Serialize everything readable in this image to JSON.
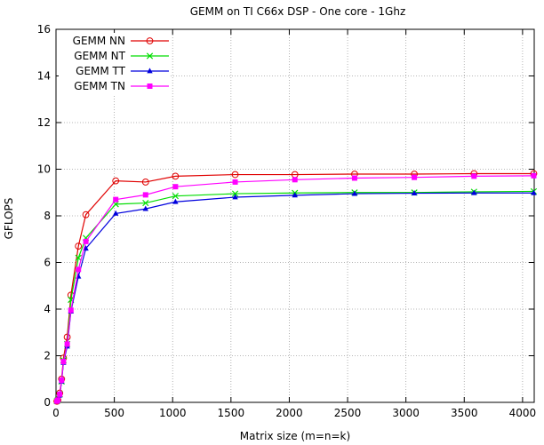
{
  "chart_data": {
    "type": "line",
    "title": "GEMM on TI C66x DSP - One core - 1Ghz",
    "xlabel": "Matrix size (m=n=k)",
    "ylabel": "GFLOPS",
    "xlim": [
      0,
      4100
    ],
    "ylim": [
      0,
      16
    ],
    "xticks": [
      0,
      500,
      1000,
      1500,
      2000,
      2500,
      3000,
      3500,
      4000
    ],
    "yticks": [
      0,
      2,
      4,
      6,
      8,
      10,
      12,
      14,
      16
    ],
    "grid": true,
    "legend_position": "top-left",
    "x": [
      8,
      16,
      32,
      48,
      64,
      96,
      128,
      192,
      256,
      512,
      768,
      1024,
      1536,
      2048,
      2560,
      3072,
      3584,
      4096
    ],
    "series": [
      {
        "name": "GEMM NN",
        "color": "#e00000",
        "marker": "circle",
        "values": [
          0.05,
          0.1,
          0.4,
          1.0,
          1.9,
          2.8,
          4.6,
          6.7,
          8.05,
          9.5,
          9.45,
          9.7,
          9.77,
          9.77,
          9.79,
          9.79,
          9.81,
          9.81
        ]
      },
      {
        "name": "GEMM NT",
        "color": "#00dd00",
        "marker": "x",
        "values": [
          0.05,
          0.1,
          0.35,
          0.9,
          1.8,
          2.5,
          4.4,
          6.2,
          7.05,
          8.5,
          8.55,
          8.85,
          8.95,
          8.98,
          9.0,
          9.0,
          9.03,
          9.05
        ]
      },
      {
        "name": "GEMM TT",
        "color": "#0000dd",
        "marker": "triangle",
        "values": [
          0.05,
          0.1,
          0.3,
          0.9,
          1.7,
          2.4,
          3.9,
          5.4,
          6.6,
          8.1,
          8.3,
          8.6,
          8.8,
          8.88,
          8.95,
          8.97,
          8.98,
          8.98
        ]
      },
      {
        "name": "GEMM TN",
        "color": "#ff00ff",
        "marker": "square",
        "values": [
          0.05,
          0.1,
          0.35,
          0.95,
          1.75,
          2.5,
          3.95,
          5.7,
          6.9,
          8.7,
          8.9,
          9.25,
          9.45,
          9.55,
          9.62,
          9.65,
          9.7,
          9.72
        ]
      }
    ]
  }
}
